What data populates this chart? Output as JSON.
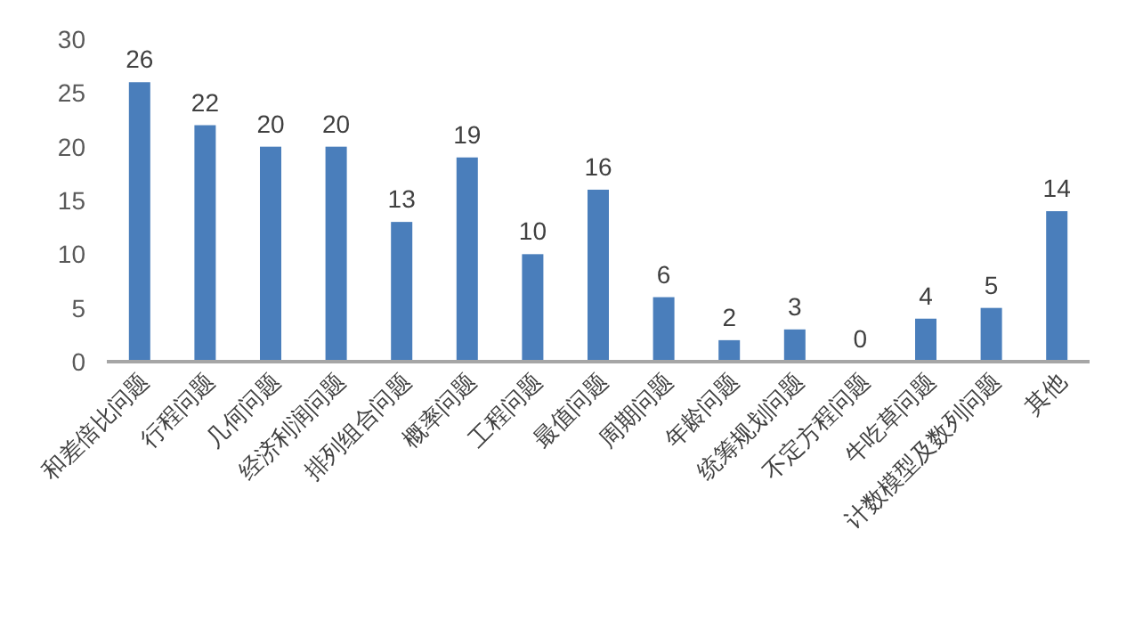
{
  "chart_data": {
    "type": "bar",
    "categories": [
      "和差倍比问题",
      "行程问题",
      "几何问题",
      "经济利润问题",
      "排列组合问题",
      "概率问题",
      "工程问题",
      "最值问题",
      "周期问题",
      "年龄问题",
      "统筹规划问题",
      "不定方程问题",
      "牛吃草问题",
      "计数模型及数列问题",
      "其他"
    ],
    "values": [
      26,
      22,
      20,
      20,
      13,
      19,
      10,
      16,
      6,
      2,
      3,
      0,
      4,
      5,
      14
    ],
    "color": "#4a7ebb",
    "ylim": [
      0,
      30
    ],
    "yticks": [
      0,
      5,
      10,
      15,
      20,
      25,
      30
    ],
    "data_labels": true
  }
}
